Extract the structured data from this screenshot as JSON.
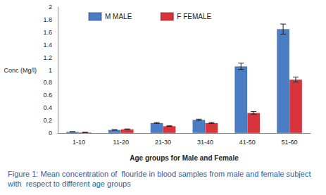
{
  "chart_data": {
    "type": "bar",
    "title": "Figure 1: Mean concentration of  flouride in blood samples from male and female subject with  respect to different age groups",
    "x_label": "Age groups for Male and Female",
    "y_label": "Conc (Mg/l)",
    "categories": [
      "1-10",
      "11-20",
      "21-30",
      "31-40",
      "41-50",
      "51-60"
    ],
    "series": [
      {
        "name": "M MALE",
        "color": "#4a7dc4",
        "values": [
          0.02,
          0.05,
          0.16,
          0.21,
          1.06,
          1.65
        ],
        "errors": [
          0.003,
          0.005,
          0.008,
          0.01,
          0.05,
          0.08
        ]
      },
      {
        "name": "F FEMALE",
        "color": "#d9343c",
        "values": [
          0.01,
          0.06,
          0.11,
          0.16,
          0.32,
          0.85
        ],
        "errors": [
          0.003,
          0.005,
          0.005,
          0.01,
          0.02,
          0.04
        ]
      }
    ],
    "ylim": [
      0,
      2
    ],
    "yticks": [
      0,
      0.2,
      0.4,
      0.6,
      0.8,
      1,
      1.2,
      1.4,
      1.6,
      1.8,
      2
    ],
    "grid": false,
    "legend": "top",
    "data_labels": false
  }
}
